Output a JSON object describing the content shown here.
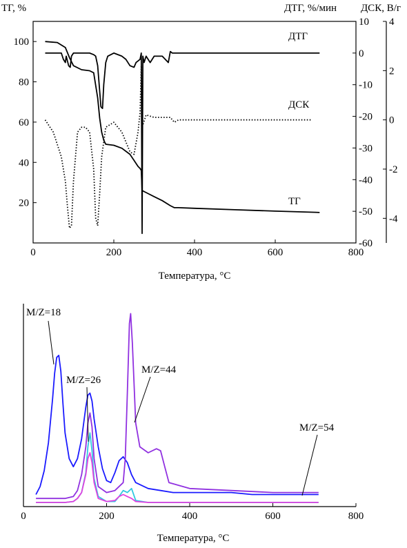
{
  "chart_data": [
    {
      "type": "line",
      "xlabel": "Температура, °С",
      "xlim": [
        0,
        800
      ],
      "x_ticks": [
        "0",
        "200",
        "400",
        "600",
        "800"
      ],
      "axes": [
        {
          "label": "ТГ, %",
          "side": "left",
          "ylim": [
            0,
            110
          ],
          "ticks": [
            "20",
            "40",
            "60",
            "80",
            "100"
          ]
        },
        {
          "label": "ДТГ, %/мин",
          "side": "right-inner",
          "ylim": [
            -60,
            10
          ],
          "ticks": [
            "10",
            "0",
            "-10",
            "-20",
            "-30",
            "-40",
            "-50",
            "-60"
          ]
        },
        {
          "label": "ДСК, В/г",
          "side": "right-outer",
          "ylim": [
            -5,
            4
          ],
          "ticks": [
            "4",
            "2",
            "0",
            "-2",
            "-4"
          ]
        }
      ],
      "series": [
        {
          "name": "ТГ",
          "color": "#000000",
          "style": "solid",
          "axis": "ТГ, %",
          "x": [
            30,
            60,
            80,
            90,
            100,
            120,
            140,
            150,
            160,
            165,
            170,
            175,
            180,
            200,
            220,
            240,
            250,
            260,
            265,
            268,
            270,
            280,
            300,
            320,
            340,
            350,
            360,
            400,
            500,
            600,
            700,
            710
          ],
          "y": [
            100,
            99.5,
            97,
            92,
            88,
            86,
            85.5,
            84.5,
            72,
            62,
            55,
            51,
            49,
            48.5,
            47,
            44,
            41,
            38,
            37,
            36,
            26,
            25,
            23,
            21,
            18.5,
            17.5,
            17.5,
            17.2,
            16.5,
            15.8,
            15.2,
            15.1
          ]
        },
        {
          "name": "ДТГ",
          "color": "#000000",
          "style": "solid",
          "axis": "ДТГ, %/мин",
          "x": [
            30,
            70,
            75,
            80,
            82,
            88,
            92,
            95,
            100,
            120,
            140,
            150,
            155,
            160,
            165,
            168,
            172,
            175,
            180,
            185,
            200,
            220,
            230,
            240,
            250,
            255,
            260,
            265,
            268,
            270,
            272,
            275,
            280,
            290,
            300,
            320,
            335,
            340,
            345,
            350,
            400,
            500,
            600,
            700,
            710
          ],
          "y": [
            0,
            0,
            -2,
            -3,
            -1,
            -4,
            -4.5,
            -1,
            0,
            0,
            0,
            -0.5,
            -1,
            -4,
            -12,
            -17,
            -17.5,
            -10,
            -3,
            -1,
            0,
            -1,
            -2,
            -4,
            -4.5,
            -3,
            -2.5,
            -2,
            0,
            -57,
            -1,
            -3,
            -1,
            -3,
            -1,
            -1,
            -3,
            0.5,
            0,
            0,
            0,
            0,
            0,
            0,
            0
          ]
        },
        {
          "name": "ДСК",
          "color": "#000000",
          "style": "dotted",
          "axis": "ДСК, В/г",
          "x": [
            30,
            50,
            70,
            80,
            85,
            90,
            95,
            100,
            110,
            120,
            130,
            140,
            150,
            155,
            160,
            165,
            170,
            180,
            200,
            220,
            240,
            250,
            260,
            265,
            268,
            270,
            280,
            300,
            320,
            340,
            350,
            360,
            400,
            500,
            600,
            690
          ],
          "y": [
            0,
            -0.5,
            -1.5,
            -2.5,
            -3.5,
            -4.4,
            -4.3,
            -2.5,
            -0.5,
            -0.3,
            -0.3,
            -0.5,
            -2,
            -4,
            -4.3,
            -3,
            -1.5,
            -0.3,
            -0.1,
            -0.5,
            -1.3,
            -1.4,
            -0.5,
            0.3,
            2.2,
            -0.3,
            0.2,
            0.1,
            0.1,
            0.1,
            -0.1,
            0,
            0,
            0,
            0,
            0
          ]
        }
      ],
      "annotations": [
        "ДТГ",
        "ДСК",
        "ТГ"
      ]
    },
    {
      "type": "line",
      "xlabel": "Температура, °С",
      "xlim": [
        0,
        800
      ],
      "ylim": [
        0,
        100
      ],
      "x_ticks": [
        "0",
        "200",
        "400",
        "600",
        "800"
      ],
      "series": [
        {
          "name": "M/Z=18",
          "color": "#1a1aff",
          "axis": "relative intensity",
          "x": [
            30,
            40,
            50,
            60,
            70,
            75,
            80,
            85,
            90,
            95,
            100,
            110,
            120,
            130,
            140,
            150,
            155,
            160,
            165,
            170,
            180,
            190,
            200,
            210,
            220,
            230,
            240,
            250,
            260,
            270,
            280,
            300,
            330,
            360,
            400,
            450,
            500,
            550,
            600,
            650,
            700,
            710
          ],
          "y": [
            4,
            8,
            16,
            30,
            52,
            65,
            73,
            74,
            66,
            50,
            35,
            22,
            18,
            22,
            32,
            48,
            54,
            55,
            51,
            42,
            28,
            17,
            11,
            10,
            15,
            21,
            23,
            20,
            14,
            10,
            9,
            7,
            6,
            5,
            5,
            5,
            5,
            4,
            4,
            4,
            4,
            4
          ]
        },
        {
          "name": "M/Z=26",
          "color": "#30c8e0",
          "axis": "relative intensity",
          "x": [
            30,
            80,
            100,
            120,
            130,
            140,
            150,
            155,
            160,
            165,
            170,
            180,
            200,
            220,
            230,
            240,
            250,
            260,
            270,
            300,
            400,
            500,
            600,
            710
          ],
          "y": [
            0,
            0,
            0,
            0.5,
            2,
            5,
            15,
            28,
            35,
            26,
            12,
            3,
            0.5,
            0.5,
            3,
            6,
            5,
            7,
            1,
            0,
            0,
            0,
            0,
            0
          ]
        },
        {
          "name": "M/Z=44",
          "color": "#9030e0",
          "axis": "relative intensity",
          "x": [
            30,
            80,
            100,
            120,
            130,
            140,
            150,
            155,
            160,
            165,
            170,
            180,
            200,
            220,
            240,
            245,
            250,
            255,
            258,
            262,
            270,
            280,
            300,
            320,
            330,
            340,
            350,
            400,
            500,
            600,
            700,
            710
          ],
          "y": [
            2,
            2,
            2,
            3,
            6,
            14,
            28,
            40,
            45,
            38,
            22,
            8,
            5,
            6,
            10,
            22,
            55,
            90,
            95,
            80,
            40,
            28,
            25,
            27,
            26,
            18,
            10,
            7,
            6,
            5,
            5,
            5
          ]
        },
        {
          "name": "M/Z=54",
          "color": "#e040e0",
          "axis": "relative intensity",
          "x": [
            30,
            80,
            100,
            120,
            130,
            140,
            150,
            155,
            160,
            165,
            170,
            180,
            200,
            220,
            230,
            240,
            250,
            260,
            270,
            300,
            400,
            500,
            600,
            710
          ],
          "y": [
            0,
            0,
            0,
            0.5,
            2,
            5,
            14,
            22,
            25,
            20,
            10,
            2,
            0.5,
            1,
            3,
            4,
            3,
            2,
            0.5,
            0,
            0,
            0,
            0,
            0
          ]
        }
      ]
    }
  ]
}
